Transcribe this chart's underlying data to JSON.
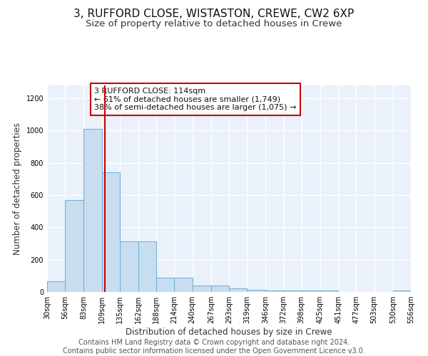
{
  "title": "3, RUFFORD CLOSE, WISTASTON, CREWE, CW2 6XP",
  "subtitle": "Size of property relative to detached houses in Crewe",
  "xlabel": "Distribution of detached houses by size in Crewe",
  "ylabel": "Number of detached properties",
  "bar_color": "#c8ddf0",
  "bar_edge_color": "#6aaed6",
  "background_color": "#eaf1fa",
  "grid_color": "#ffffff",
  "bin_edges": [
    30,
    56,
    83,
    109,
    135,
    162,
    188,
    214,
    240,
    267,
    293,
    319,
    346,
    372,
    398,
    425,
    451,
    477,
    503,
    530,
    556
  ],
  "bin_labels": [
    "30sqm",
    "56sqm",
    "83sqm",
    "109sqm",
    "135sqm",
    "162sqm",
    "188sqm",
    "214sqm",
    "240sqm",
    "267sqm",
    "293sqm",
    "319sqm",
    "346sqm",
    "372sqm",
    "398sqm",
    "425sqm",
    "451sqm",
    "477sqm",
    "503sqm",
    "530sqm",
    "556sqm"
  ],
  "bar_heights": [
    65,
    570,
    1010,
    740,
    315,
    315,
    90,
    90,
    40,
    40,
    20,
    15,
    10,
    10,
    10,
    10,
    0,
    0,
    0,
    10
  ],
  "ylim": [
    0,
    1280
  ],
  "yticks": [
    0,
    200,
    400,
    600,
    800,
    1000,
    1200
  ],
  "property_size": 114,
  "red_line_color": "#cc0000",
  "annotation_text": "3 RUFFORD CLOSE: 114sqm\n← 61% of detached houses are smaller (1,749)\n38% of semi-detached houses are larger (1,075) →",
  "annotation_box_color": "#ffffff",
  "annotation_box_edge_color": "#cc0000",
  "footer_text": "Contains HM Land Registry data © Crown copyright and database right 2024.\nContains public sector information licensed under the Open Government Licence v3.0.",
  "title_fontsize": 11,
  "subtitle_fontsize": 9.5,
  "annotation_fontsize": 8,
  "footer_fontsize": 7,
  "tick_fontsize": 7,
  "ylabel_fontsize": 8.5,
  "xlabel_fontsize": 8.5
}
